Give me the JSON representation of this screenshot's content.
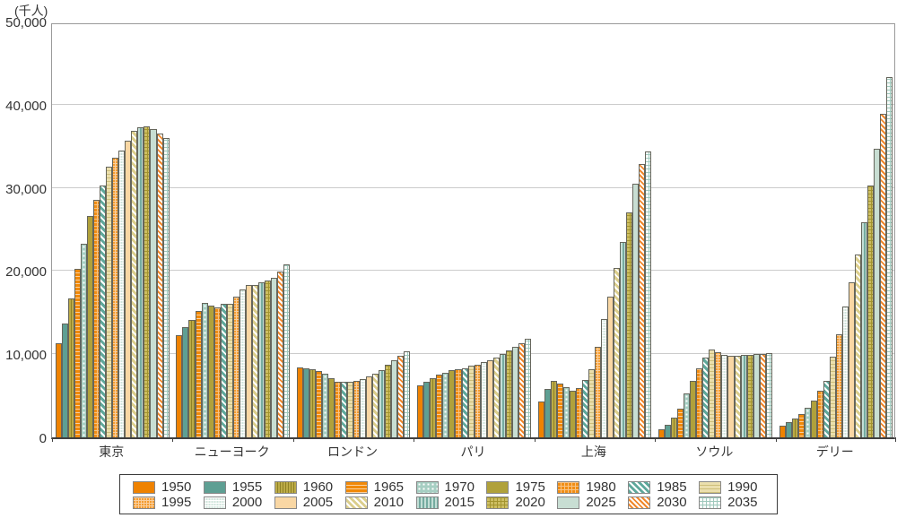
{
  "chart_data": {
    "type": "bar",
    "unit_label": "(千人)",
    "ylim": [
      0,
      50000
    ],
    "ytick_step": 10000,
    "ytick_labels": [
      "0",
      "10,000",
      "20,000",
      "30,000",
      "40,000",
      "50,000"
    ],
    "grid": true,
    "legend_position": "bottom",
    "legend_rows": 2,
    "categories": [
      "東京",
      "ニューヨーク",
      "ロンドン",
      "パリ",
      "上海",
      "ソウル",
      "デリー"
    ],
    "series": [
      {
        "name": "1950",
        "pattern": "solid-orange",
        "values": [
          11275,
          12338,
          8361,
          6283,
          4301,
          1021,
          1369
        ]
      },
      {
        "name": "1955",
        "pattern": "solid-teal",
        "values": [
          13713,
          13219,
          8278,
          6700,
          5846,
          1553,
          1782
        ]
      },
      {
        "name": "1960",
        "pattern": "vstripe-olive",
        "values": [
          16679,
          14164,
          8196,
          7100,
          6820,
          2361,
          2283
        ]
      },
      {
        "name": "1965",
        "pattern": "hstripe-orange",
        "values": [
          20284,
          15177,
          7950,
          7500,
          6430,
          3447,
          2845
        ]
      },
      {
        "name": "1970",
        "pattern": "dots-teal",
        "values": [
          23298,
          16191,
          7600,
          7750,
          6036,
          5312,
          3531
        ]
      },
      {
        "name": "1975",
        "pattern": "solid-olive",
        "values": [
          26615,
          15880,
          7150,
          8050,
          5627,
          6808,
          4426
        ]
      },
      {
        "name": "1980",
        "pattern": "plaid-orange",
        "values": [
          28549,
          15601,
          6700,
          8200,
          5966,
          8244,
          5558
        ]
      },
      {
        "name": "1985",
        "pattern": "diag-teal",
        "values": [
          30304,
          16104,
          6650,
          8350,
          6847,
          9549,
          6769
        ]
      },
      {
        "name": "1990",
        "pattern": "hstripe-beige",
        "values": [
          32530,
          16086,
          6650,
          8650,
          8205,
          10518,
          9726
        ]
      },
      {
        "name": "1995",
        "pattern": "mesh-orange",
        "values": [
          33587,
          16944,
          6800,
          8750,
          10883,
          10256,
          12407
        ]
      },
      {
        "name": "2000",
        "pattern": "grid-pale-teal",
        "values": [
          34450,
          17813,
          7050,
          9000,
          14247,
          9879,
          15692
        ]
      },
      {
        "name": "2005",
        "pattern": "solid-peach",
        "values": [
          35622,
          18365,
          7300,
          9250,
          16874,
          9825,
          18670
        ]
      },
      {
        "name": "2010",
        "pattern": "diag-khaki",
        "values": [
          36860,
          18365,
          7650,
          9600,
          20314,
          9796,
          21988
        ]
      },
      {
        "name": "2015",
        "pattern": "vstripe-teal",
        "values": [
          37256,
          18648,
          8100,
          10000,
          23482,
          9941,
          25866
        ]
      },
      {
        "name": "2020",
        "pattern": "plaid-olive",
        "values": [
          37393,
          18804,
          8700,
          10450,
          27058,
          9963,
          30291
        ]
      },
      {
        "name": "2025",
        "pattern": "solid-pale-teal",
        "values": [
          37036,
          19201,
          9250,
          10900,
          30482,
          9985,
          34666
        ]
      },
      {
        "name": "2030",
        "pattern": "diag-orange-white",
        "values": [
          36574,
          19958,
          9850,
          11350,
          32869,
          10027,
          38939
        ]
      },
      {
        "name": "2035",
        "pattern": "grid-teal-white",
        "values": [
          36014,
          20826,
          10300,
          11800,
          34341,
          10109,
          43345
        ]
      }
    ],
    "colors": {
      "orange": "#ef8200",
      "teal": "#5e9f93",
      "olive": "#b0a13b",
      "peach": "#f9d7a4",
      "pale_teal": "#c8ded3",
      "beige": "#ebdfad",
      "axis": "#404040",
      "gridline": "#cccccc",
      "text": "#333333"
    }
  }
}
